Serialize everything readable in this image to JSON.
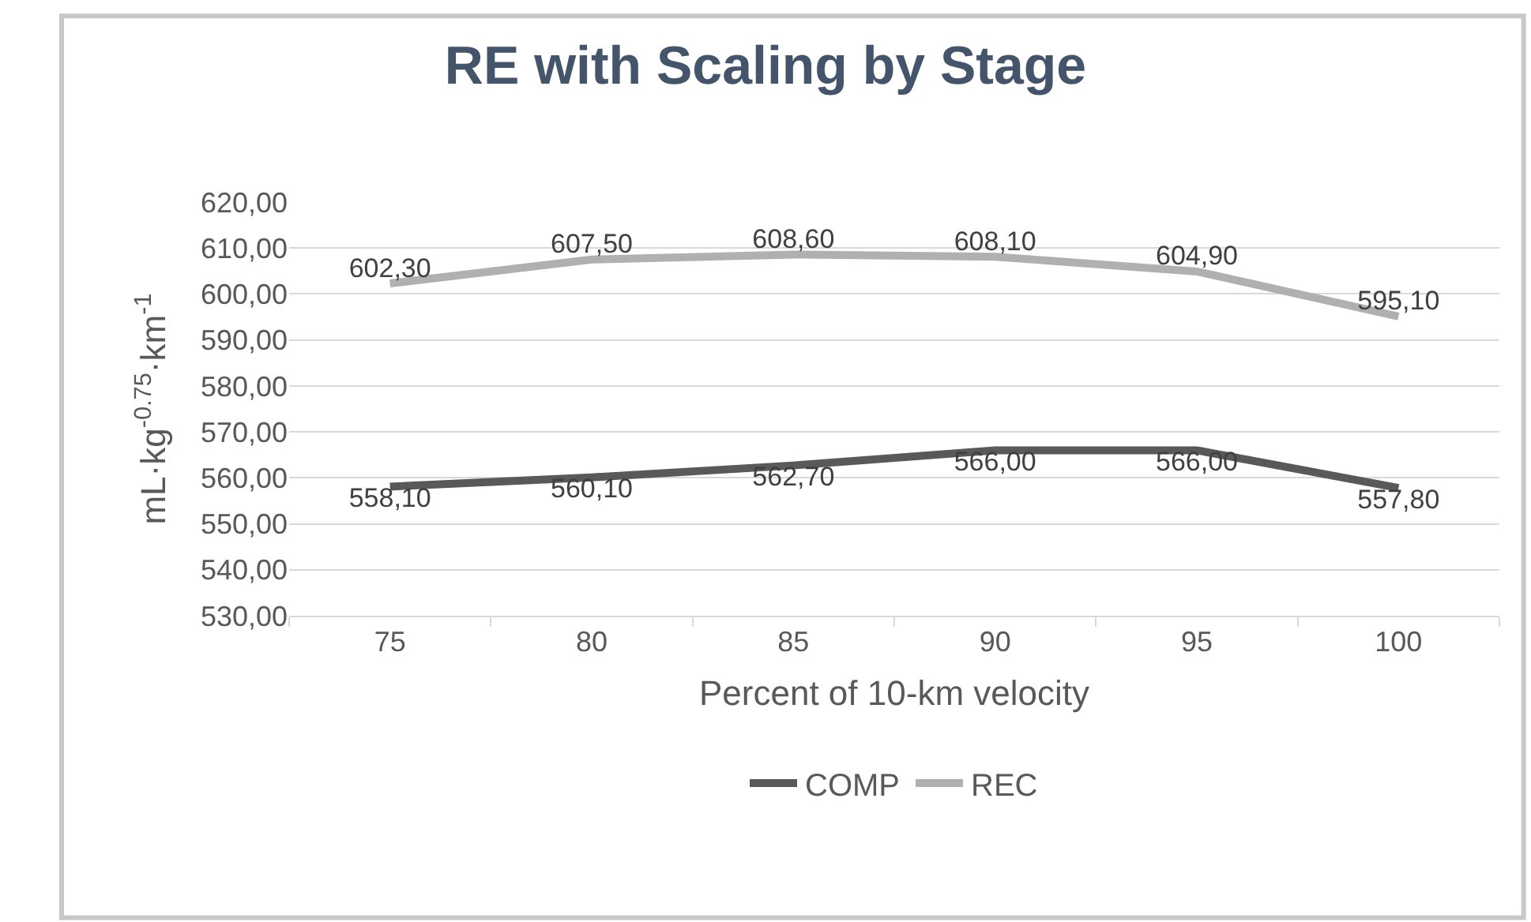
{
  "chart_data": {
    "type": "line",
    "title": "RE with Scaling by Stage",
    "xlabel": "Percent of 10-km velocity",
    "ylabel": "mL·kg$^{-0.75}$·km$^{-1}$",
    "categories": [
      "75",
      "80",
      "85",
      "90",
      "95",
      "100"
    ],
    "series": [
      {
        "name": "COMP",
        "color": "#595959",
        "values": [
          558.1,
          560.1,
          562.7,
          566.0,
          566.0,
          557.8
        ],
        "value_labels": [
          "558,10",
          "560,10",
          "562,70",
          "566,00",
          "566,00",
          "557,80"
        ]
      },
      {
        "name": "REC",
        "color": "#b0b0b0",
        "values": [
          602.3,
          607.5,
          608.6,
          608.1,
          604.9,
          595.1
        ],
        "value_labels": [
          "602,30",
          "607,50",
          "608,60",
          "608,10",
          "604,90",
          "595,10"
        ]
      }
    ],
    "ylim": [
      530,
      620
    ],
    "yticks": [
      {
        "value": 530,
        "label": "530,00"
      },
      {
        "value": 540,
        "label": "540,00"
      },
      {
        "value": 550,
        "label": "550,00"
      },
      {
        "value": 560,
        "label": "560,00"
      },
      {
        "value": 570,
        "label": "570,00"
      },
      {
        "value": 580,
        "label": "580,00"
      },
      {
        "value": 590,
        "label": "590,00"
      },
      {
        "value": 600,
        "label": "600,00"
      },
      {
        "value": 610,
        "label": "610,00"
      },
      {
        "value": 620,
        "label": "620,00"
      }
    ],
    "grid": "y",
    "legend": "bottom",
    "marker": "none",
    "line_style": "solid"
  }
}
